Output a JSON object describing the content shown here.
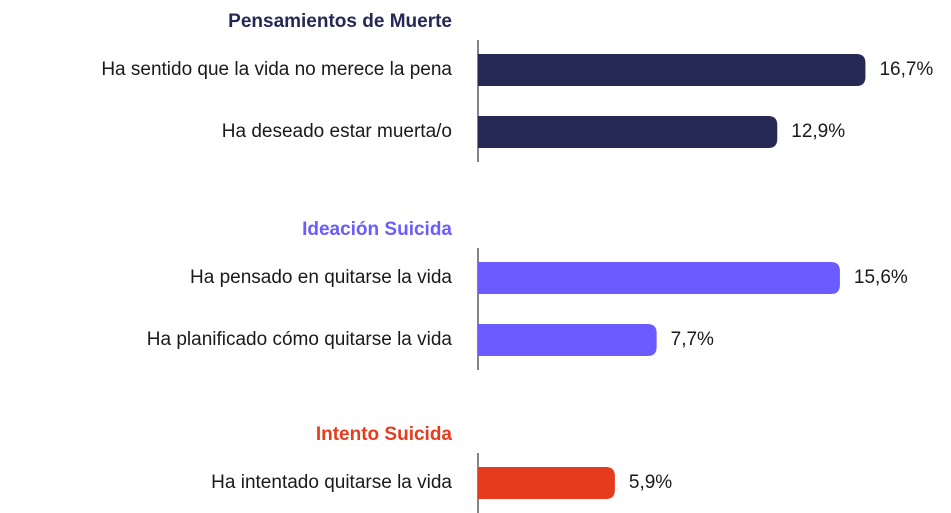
{
  "chart_data": {
    "type": "bar",
    "orientation": "horizontal",
    "xlim": [
      0,
      20
    ],
    "groups": [
      {
        "title": "Pensamientos de Muerte",
        "color": "#262954",
        "categories": [
          "Ha sentido que la vida no merece la pena",
          "Ha deseado estar muerta/o"
        ],
        "values": [
          16.7,
          12.9
        ],
        "value_labels": [
          "16,7%",
          "12,9%"
        ]
      },
      {
        "title": "Ideación Suicida",
        "color": "#6b5cff",
        "categories": [
          "Ha pensado en quitarse la vida",
          "Ha planificado cómo quitarse la vida"
        ],
        "values": [
          15.6,
          7.7
        ],
        "value_labels": [
          "15,6%",
          "7,7%"
        ]
      },
      {
        "title": "Intento Suicida",
        "color": "#e63c1e",
        "categories": [
          "Ha intentado quitarse la vida"
        ],
        "values": [
          5.9
        ],
        "value_labels": [
          "5,9%"
        ]
      }
    ]
  }
}
